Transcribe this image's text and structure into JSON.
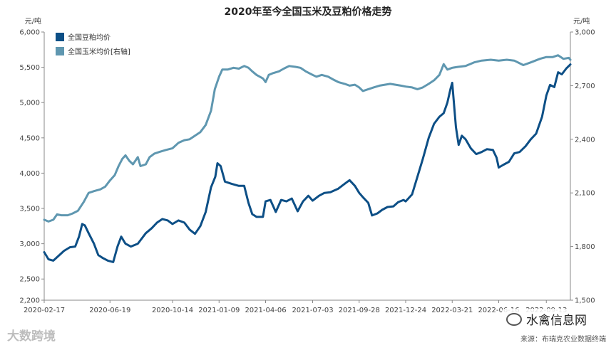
{
  "chart_data": {
    "type": "line",
    "title": "2020年至今全国玉米及豆粕价格走势",
    "left_unit": "元/吨",
    "right_unit": "元/吨",
    "x_tick_labels": [
      "2020-02-17",
      "2020-06-19",
      "2020-10-14",
      "2021-01-09",
      "2021-04-06",
      "2021-07-03",
      "2021-09-28",
      "2021-12-24",
      "2022-03-21",
      "2022-06-16",
      "2022-09-13"
    ],
    "left_axis": {
      "ylim": [
        2200,
        6000
      ],
      "ticks": [
        "2,200",
        "2,500",
        "3,000",
        "3,500",
        "4,000",
        "4,500",
        "5,000",
        "5,500",
        "6,000"
      ],
      "tick_values": [
        2200,
        2500,
        3000,
        3500,
        4000,
        4500,
        5000,
        5500,
        6000
      ]
    },
    "right_axis": {
      "ylim": [
        1500,
        3000
      ],
      "ticks": [
        "1,500",
        "1,800",
        "2,100",
        "2,400",
        "2,700",
        "3,000"
      ],
      "tick_values": [
        1500,
        1800,
        2100,
        2400,
        2700,
        3000
      ]
    },
    "series": [
      {
        "name": "全国豆粕均价",
        "axis": "left",
        "color": "#0d4f86",
        "points": [
          [
            "2020-02-17",
            2880
          ],
          [
            "2020-02-25",
            2780
          ],
          [
            "2020-03-05",
            2760
          ],
          [
            "2020-03-15",
            2830
          ],
          [
            "2020-03-25",
            2900
          ],
          [
            "2020-04-05",
            2950
          ],
          [
            "2020-04-15",
            2960
          ],
          [
            "2020-04-22",
            3100
          ],
          [
            "2020-04-28",
            3280
          ],
          [
            "2020-05-03",
            3260
          ],
          [
            "2020-05-10",
            3150
          ],
          [
            "2020-05-20",
            3000
          ],
          [
            "2020-05-28",
            2840
          ],
          [
            "2020-06-05",
            2800
          ],
          [
            "2020-06-15",
            2760
          ],
          [
            "2020-06-25",
            2740
          ],
          [
            "2020-07-03",
            2960
          ],
          [
            "2020-07-10",
            3100
          ],
          [
            "2020-07-18",
            3000
          ],
          [
            "2020-07-28",
            2960
          ],
          [
            "2020-08-10",
            3000
          ],
          [
            "2020-08-25",
            3150
          ],
          [
            "2020-09-05",
            3220
          ],
          [
            "2020-09-15",
            3300
          ],
          [
            "2020-09-25",
            3350
          ],
          [
            "2020-10-05",
            3330
          ],
          [
            "2020-10-14",
            3280
          ],
          [
            "2020-10-25",
            3330
          ],
          [
            "2020-11-05",
            3300
          ],
          [
            "2020-11-15",
            3200
          ],
          [
            "2020-11-25",
            3140
          ],
          [
            "2020-12-05",
            3250
          ],
          [
            "2020-12-15",
            3450
          ],
          [
            "2020-12-25",
            3800
          ],
          [
            "2021-01-02",
            3950
          ],
          [
            "2021-01-06",
            4140
          ],
          [
            "2021-01-12",
            4100
          ],
          [
            "2021-01-20",
            3880
          ],
          [
            "2021-02-01",
            3850
          ],
          [
            "2021-02-15",
            3820
          ],
          [
            "2021-02-25",
            3820
          ],
          [
            "2021-03-05",
            3580
          ],
          [
            "2021-03-12",
            3420
          ],
          [
            "2021-03-20",
            3380
          ],
          [
            "2021-04-01",
            3380
          ],
          [
            "2021-04-06",
            3600
          ],
          [
            "2021-04-15",
            3620
          ],
          [
            "2021-04-25",
            3450
          ],
          [
            "2021-05-05",
            3620
          ],
          [
            "2021-05-15",
            3600
          ],
          [
            "2021-05-25",
            3640
          ],
          [
            "2021-06-05",
            3460
          ],
          [
            "2021-06-15",
            3600
          ],
          [
            "2021-06-25",
            3680
          ],
          [
            "2021-07-03",
            3610
          ],
          [
            "2021-07-15",
            3680
          ],
          [
            "2021-07-25",
            3720
          ],
          [
            "2021-08-05",
            3730
          ],
          [
            "2021-08-20",
            3780
          ],
          [
            "2021-09-01",
            3850
          ],
          [
            "2021-09-10",
            3900
          ],
          [
            "2021-09-20",
            3820
          ],
          [
            "2021-09-28",
            3720
          ],
          [
            "2021-10-05",
            3660
          ],
          [
            "2021-10-15",
            3580
          ],
          [
            "2021-10-22",
            3400
          ],
          [
            "2021-11-01",
            3430
          ],
          [
            "2021-11-10",
            3480
          ],
          [
            "2021-11-20",
            3520
          ],
          [
            "2021-12-01",
            3530
          ],
          [
            "2021-12-10",
            3590
          ],
          [
            "2021-12-20",
            3620
          ],
          [
            "2021-12-24",
            3600
          ],
          [
            "2022-01-05",
            3700
          ],
          [
            "2022-01-15",
            3950
          ],
          [
            "2022-01-25",
            4200
          ],
          [
            "2022-02-05",
            4500
          ],
          [
            "2022-02-15",
            4700
          ],
          [
            "2022-02-25",
            4800
          ],
          [
            "2022-03-05",
            4850
          ],
          [
            "2022-03-12",
            5000
          ],
          [
            "2022-03-18",
            5200
          ],
          [
            "2022-03-21",
            5280
          ],
          [
            "2022-03-28",
            4650
          ],
          [
            "2022-04-02",
            4400
          ],
          [
            "2022-04-08",
            4530
          ],
          [
            "2022-04-15",
            4480
          ],
          [
            "2022-04-25",
            4350
          ],
          [
            "2022-05-05",
            4270
          ],
          [
            "2022-05-15",
            4300
          ],
          [
            "2022-05-25",
            4340
          ],
          [
            "2022-06-05",
            4330
          ],
          [
            "2022-06-12",
            4220
          ],
          [
            "2022-06-16",
            4080
          ],
          [
            "2022-06-25",
            4120
          ],
          [
            "2022-07-05",
            4160
          ],
          [
            "2022-07-15",
            4280
          ],
          [
            "2022-07-25",
            4300
          ],
          [
            "2022-08-05",
            4380
          ],
          [
            "2022-08-15",
            4480
          ],
          [
            "2022-08-25",
            4560
          ],
          [
            "2022-09-05",
            4800
          ],
          [
            "2022-09-13",
            5100
          ],
          [
            "2022-09-20",
            5250
          ],
          [
            "2022-09-28",
            5220
          ],
          [
            "2022-10-05",
            5430
          ],
          [
            "2022-10-12",
            5400
          ],
          [
            "2022-10-20",
            5480
          ],
          [
            "2022-10-28",
            5540
          ]
        ]
      },
      {
        "name": "全国玉米均价[右轴]",
        "axis": "right",
        "color": "#5f97b0",
        "points": [
          [
            "2020-02-17",
            1950
          ],
          [
            "2020-02-25",
            1940
          ],
          [
            "2020-03-05",
            1950
          ],
          [
            "2020-03-12",
            1980
          ],
          [
            "2020-03-20",
            1975
          ],
          [
            "2020-04-01",
            1975
          ],
          [
            "2020-04-10",
            1985
          ],
          [
            "2020-04-20",
            2000
          ],
          [
            "2020-05-01",
            2050
          ],
          [
            "2020-05-10",
            2100
          ],
          [
            "2020-05-20",
            2110
          ],
          [
            "2020-06-01",
            2120
          ],
          [
            "2020-06-10",
            2135
          ],
          [
            "2020-06-19",
            2170
          ],
          [
            "2020-06-28",
            2200
          ],
          [
            "2020-07-05",
            2250
          ],
          [
            "2020-07-12",
            2290
          ],
          [
            "2020-07-18",
            2310
          ],
          [
            "2020-07-25",
            2280
          ],
          [
            "2020-08-01",
            2260
          ],
          [
            "2020-08-10",
            2300
          ],
          [
            "2020-08-15",
            2250
          ],
          [
            "2020-08-25",
            2260
          ],
          [
            "2020-09-01",
            2300
          ],
          [
            "2020-09-10",
            2320
          ],
          [
            "2020-09-20",
            2330
          ],
          [
            "2020-10-01",
            2340
          ],
          [
            "2020-10-14",
            2350
          ],
          [
            "2020-10-25",
            2380
          ],
          [
            "2020-11-05",
            2395
          ],
          [
            "2020-11-15",
            2400
          ],
          [
            "2020-11-25",
            2420
          ],
          [
            "2020-12-05",
            2440
          ],
          [
            "2020-12-15",
            2480
          ],
          [
            "2020-12-25",
            2560
          ],
          [
            "2021-01-01",
            2680
          ],
          [
            "2021-01-09",
            2750
          ],
          [
            "2021-01-15",
            2790
          ],
          [
            "2021-01-25",
            2790
          ],
          [
            "2021-02-05",
            2800
          ],
          [
            "2021-02-15",
            2795
          ],
          [
            "2021-02-25",
            2810
          ],
          [
            "2021-03-05",
            2800
          ],
          [
            "2021-03-12",
            2780
          ],
          [
            "2021-03-20",
            2760
          ],
          [
            "2021-04-01",
            2740
          ],
          [
            "2021-04-06",
            2720
          ],
          [
            "2021-04-12",
            2760
          ],
          [
            "2021-04-20",
            2770
          ],
          [
            "2021-05-01",
            2780
          ],
          [
            "2021-05-10",
            2795
          ],
          [
            "2021-05-20",
            2810
          ],
          [
            "2021-06-01",
            2805
          ],
          [
            "2021-06-10",
            2800
          ],
          [
            "2021-06-20",
            2780
          ],
          [
            "2021-07-03",
            2760
          ],
          [
            "2021-07-10",
            2750
          ],
          [
            "2021-07-20",
            2760
          ],
          [
            "2021-08-01",
            2750
          ],
          [
            "2021-08-10",
            2735
          ],
          [
            "2021-08-20",
            2720
          ],
          [
            "2021-09-01",
            2710
          ],
          [
            "2021-09-10",
            2700
          ],
          [
            "2021-09-20",
            2705
          ],
          [
            "2021-09-28",
            2690
          ],
          [
            "2021-10-05",
            2670
          ],
          [
            "2021-10-15",
            2680
          ],
          [
            "2021-10-25",
            2690
          ],
          [
            "2021-11-05",
            2700
          ],
          [
            "2021-11-15",
            2705
          ],
          [
            "2021-11-25",
            2710
          ],
          [
            "2021-12-05",
            2705
          ],
          [
            "2021-12-15",
            2700
          ],
          [
            "2021-12-24",
            2695
          ],
          [
            "2022-01-05",
            2690
          ],
          [
            "2022-01-15",
            2680
          ],
          [
            "2022-01-25",
            2690
          ],
          [
            "2022-02-05",
            2710
          ],
          [
            "2022-02-15",
            2730
          ],
          [
            "2022-02-25",
            2760
          ],
          [
            "2022-03-05",
            2820
          ],
          [
            "2022-03-12",
            2790
          ],
          [
            "2022-03-21",
            2800
          ],
          [
            "2022-04-01",
            2805
          ],
          [
            "2022-04-15",
            2810
          ],
          [
            "2022-05-01",
            2830
          ],
          [
            "2022-05-15",
            2840
          ],
          [
            "2022-06-01",
            2845
          ],
          [
            "2022-06-16",
            2840
          ],
          [
            "2022-07-01",
            2845
          ],
          [
            "2022-07-15",
            2840
          ],
          [
            "2022-08-01",
            2815
          ],
          [
            "2022-08-15",
            2830
          ],
          [
            "2022-09-01",
            2850
          ],
          [
            "2022-09-13",
            2860
          ],
          [
            "2022-09-25",
            2860
          ],
          [
            "2022-10-05",
            2870
          ],
          [
            "2022-10-15",
            2850
          ],
          [
            "2022-10-25",
            2855
          ],
          [
            "2022-10-28",
            2845
          ]
        ]
      }
    ],
    "legend_position": "top-left",
    "grid": false
  },
  "source_text": "来源：布瑞克农业数据终端",
  "watermark_left": "大数跨境",
  "watermark_right": "水禽信息网"
}
